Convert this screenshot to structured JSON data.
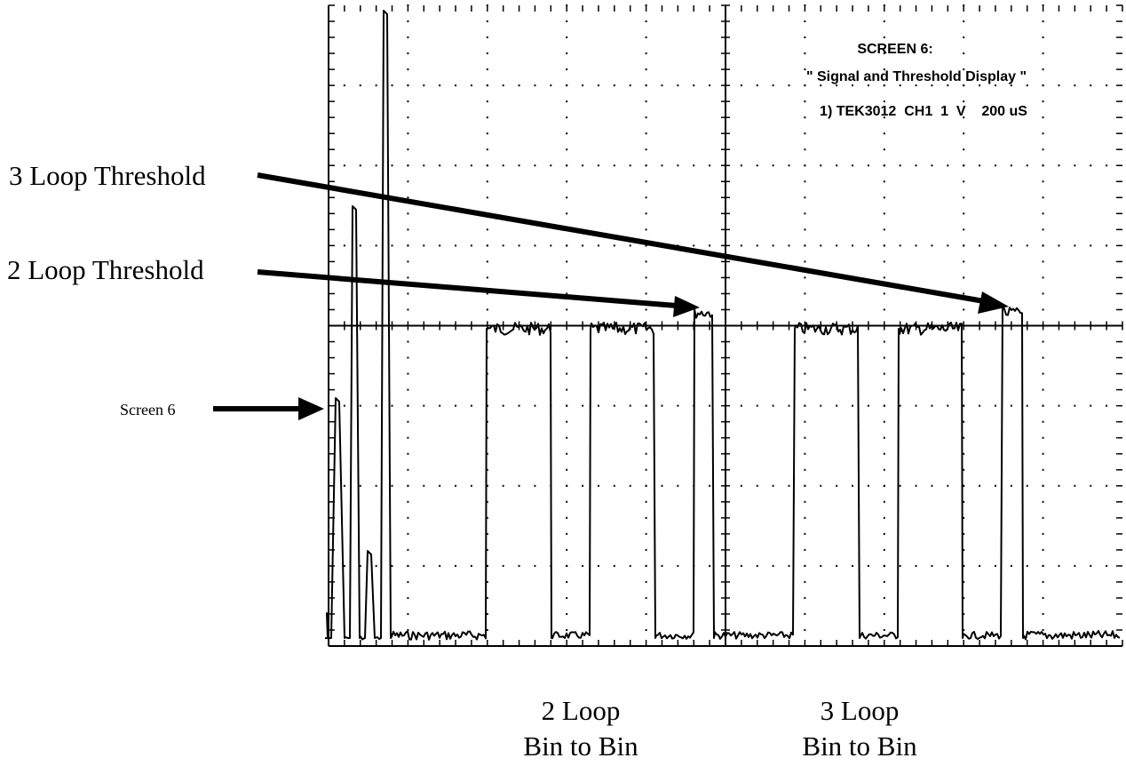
{
  "screen_info": {
    "title": "SCREEN 6:",
    "subtitle": "\" Signal and Threshold Display \"",
    "channel_line": "1) TEK3012  CH1  1  V    200 uS"
  },
  "annotations": {
    "three_loop_threshold": "3 Loop Threshold",
    "two_loop_threshold": "2 Loop Threshold",
    "screen6": "Screen 6"
  },
  "bottom_labels": {
    "two_loop_line1": "2 Loop",
    "two_loop_line2": "Bin to Bin",
    "three_loop_line1": "3 Loop",
    "three_loop_line2": "Bin to Bin"
  },
  "colors": {
    "trace": "#000000",
    "grid": "#000000",
    "background": "#ffffff"
  }
}
